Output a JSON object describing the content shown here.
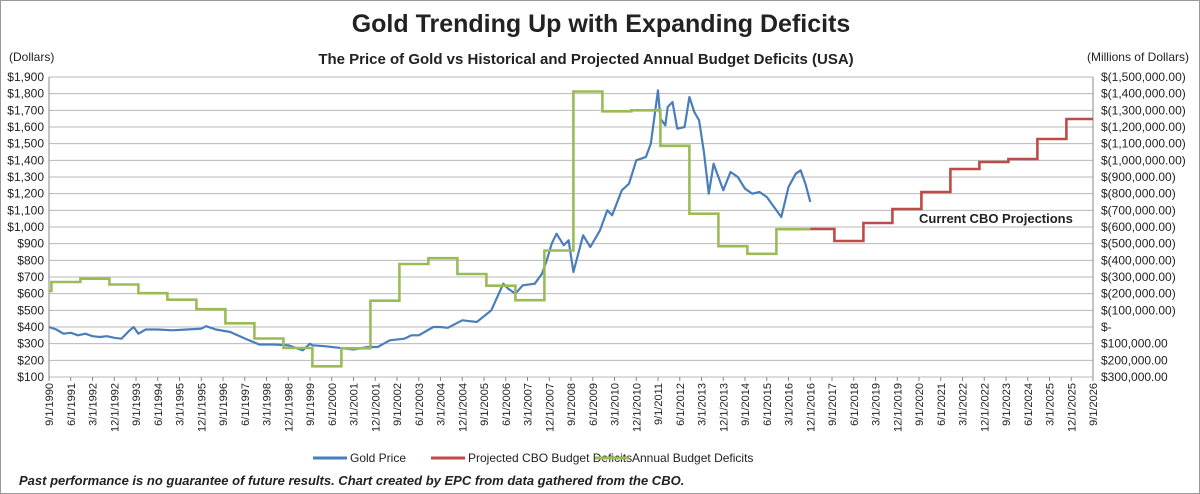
{
  "chart_data": {
    "type": "line",
    "title": "Gold Trending Up with Expanding Deficits",
    "subtitle": "The Price of Gold vs Historical and Projected Annual Budget Deficits (USA)",
    "ylabel_left": "(Dollars)",
    "ylabel_right": "(Millions of Dollars)",
    "ylim_left": [
      100,
      1900
    ],
    "ylim_right_deficit": [
      -300000,
      1500000
    ],
    "right_axis_inverted_note": "deficits shown as negative values in parentheses",
    "grid": true,
    "legend_position": "bottom",
    "y_ticks_left": [
      "$1,900",
      "$1,800",
      "$1,700",
      "$1,600",
      "$1,500",
      "$1,400",
      "$1,300",
      "$1,200",
      "$1,100",
      "$1,000",
      "$900",
      "$800",
      "$700",
      "$600",
      "$500",
      "$400",
      "$300",
      "$200",
      "$100"
    ],
    "y_ticks_right": [
      "$(1,500,000.00)",
      "$(1,400,000.00)",
      "$(1,300,000.00)",
      "$(1,200,000.00)",
      "$(1,100,000.00)",
      "$(1,000,000.00)",
      "$(900,000.00)",
      "$(800,000.00)",
      "$(700,000.00)",
      "$(600,000.00)",
      "$(500,000.00)",
      "$(400,000.00)",
      "$(300,000.00)",
      "$(200,000.00)",
      "$(100,000.00)",
      "$-",
      "$100,000.00",
      "$200,000.00",
      "$300,000.00"
    ],
    "x_ticks": [
      "9/1/1990",
      "6/1/1991",
      "3/1/1992",
      "12/1/1992",
      "9/1/1993",
      "6/1/1994",
      "3/1/1995",
      "12/1/1995",
      "9/1/1996",
      "6/1/1997",
      "3/1/1998",
      "12/1/1998",
      "9/1/1999",
      "6/1/2000",
      "3/1/2001",
      "12/1/2001",
      "9/1/2002",
      "6/1/2003",
      "3/1/2004",
      "12/1/2004",
      "9/1/2005",
      "6/1/2006",
      "3/1/2007",
      "12/1/2007",
      "9/1/2008",
      "6/1/2009",
      "3/1/2010",
      "12/1/2010",
      "9/1/2011",
      "6/1/2012",
      "3/1/2013",
      "12/1/2013",
      "9/1/2014",
      "6/1/2015",
      "3/1/2016",
      "12/1/2016",
      "9/1/2017",
      "6/1/2018",
      "3/1/2019",
      "12/1/2019",
      "9/1/2020",
      "6/1/2021",
      "3/1/2022",
      "12/1/2022",
      "9/1/2023",
      "6/1/2024",
      "3/1/2025",
      "12/1/2025",
      "9/1/2026"
    ],
    "series": [
      {
        "name": "Gold Price",
        "axis": "left",
        "color": "#4a7ebb",
        "points": [
          [
            "1990-09",
            400
          ],
          [
            "1990-12",
            385
          ],
          [
            "1991-03",
            360
          ],
          [
            "1991-06",
            365
          ],
          [
            "1991-09",
            350
          ],
          [
            "1991-12",
            360
          ],
          [
            "1992-03",
            345
          ],
          [
            "1992-06",
            340
          ],
          [
            "1992-09",
            345
          ],
          [
            "1992-12",
            335
          ],
          [
            "1993-03",
            330
          ],
          [
            "1993-06",
            375
          ],
          [
            "1993-08",
            400
          ],
          [
            "1993-10",
            360
          ],
          [
            "1994-01",
            385
          ],
          [
            "1994-06",
            385
          ],
          [
            "1994-12",
            380
          ],
          [
            "1995-06",
            385
          ],
          [
            "1995-12",
            390
          ],
          [
            "1996-02",
            405
          ],
          [
            "1996-06",
            385
          ],
          [
            "1996-12",
            370
          ],
          [
            "1997-03",
            350
          ],
          [
            "1997-07",
            325
          ],
          [
            "1997-12",
            295
          ],
          [
            "1998-06",
            295
          ],
          [
            "1998-12",
            290
          ],
          [
            "1999-06",
            260
          ],
          [
            "1999-09",
            300
          ],
          [
            "1999-10",
            290
          ],
          [
            "2000-03",
            285
          ],
          [
            "2000-09",
            275
          ],
          [
            "2001-03",
            265
          ],
          [
            "2001-09",
            280
          ],
          [
            "2002-01",
            280
          ],
          [
            "2002-06",
            320
          ],
          [
            "2002-12",
            330
          ],
          [
            "2003-03",
            350
          ],
          [
            "2003-06",
            350
          ],
          [
            "2003-12",
            400
          ],
          [
            "2004-03",
            400
          ],
          [
            "2004-06",
            395
          ],
          [
            "2004-12",
            440
          ],
          [
            "2005-06",
            430
          ],
          [
            "2005-12",
            500
          ],
          [
            "2006-05",
            660
          ],
          [
            "2006-07",
            630
          ],
          [
            "2006-10",
            600
          ],
          [
            "2007-01",
            650
          ],
          [
            "2007-06",
            660
          ],
          [
            "2007-09",
            720
          ],
          [
            "2007-11",
            800
          ],
          [
            "2008-01",
            900
          ],
          [
            "2008-03",
            960
          ],
          [
            "2008-06",
            890
          ],
          [
            "2008-08",
            920
          ],
          [
            "2008-10",
            730
          ],
          [
            "2009-02",
            950
          ],
          [
            "2009-05",
            880
          ],
          [
            "2009-09",
            980
          ],
          [
            "2009-12",
            1100
          ],
          [
            "2010-02",
            1070
          ],
          [
            "2010-06",
            1220
          ],
          [
            "2010-09",
            1260
          ],
          [
            "2010-12",
            1400
          ],
          [
            "2011-04",
            1420
          ],
          [
            "2011-06",
            1500
          ],
          [
            "2011-09",
            1820
          ],
          [
            "2011-10",
            1650
          ],
          [
            "2011-12",
            1610
          ],
          [
            "2012-01",
            1720
          ],
          [
            "2012-03",
            1750
          ],
          [
            "2012-05",
            1590
          ],
          [
            "2012-08",
            1600
          ],
          [
            "2012-10",
            1780
          ],
          [
            "2012-12",
            1690
          ],
          [
            "2013-02",
            1640
          ],
          [
            "2013-04",
            1450
          ],
          [
            "2013-06",
            1200
          ],
          [
            "2013-08",
            1380
          ],
          [
            "2013-12",
            1220
          ],
          [
            "2014-03",
            1330
          ],
          [
            "2014-06",
            1300
          ],
          [
            "2014-09",
            1230
          ],
          [
            "2014-12",
            1200
          ],
          [
            "2015-03",
            1210
          ],
          [
            "2015-06",
            1180
          ],
          [
            "2015-09",
            1120
          ],
          [
            "2015-12",
            1060
          ],
          [
            "2016-03",
            1240
          ],
          [
            "2016-06",
            1320
          ],
          [
            "2016-08",
            1340
          ],
          [
            "2016-10",
            1260
          ],
          [
            "2016-12",
            1150
          ]
        ]
      },
      {
        "name": "Projected CBO Budget Deficits",
        "axis": "right",
        "color": "#be4b48",
        "end": "2026-09",
        "steps": [
          [
            "2016-12",
            588000
          ],
          [
            "2017-10",
            516000
          ],
          [
            "2018-10",
            624000
          ],
          [
            "2019-10",
            708000
          ],
          [
            "2020-10",
            810000
          ],
          [
            "2021-10",
            948000
          ],
          [
            "2022-10",
            990000
          ],
          [
            "2023-10",
            1008000
          ],
          [
            "2024-10",
            1128000
          ],
          [
            "2025-10",
            1248000
          ]
        ]
      },
      {
        "name": "Annual Budget Deficits",
        "axis": "right",
        "color": "#9bbb59",
        "end": "2016-12",
        "steps": [
          [
            "1990-09",
            216000
          ],
          [
            "1990-10",
            270000
          ],
          [
            "1991-10",
            290000
          ],
          [
            "1992-10",
            255000
          ],
          [
            "1993-10",
            203000
          ],
          [
            "1994-10",
            164000
          ],
          [
            "1995-10",
            107000
          ],
          [
            "1996-10",
            22000
          ],
          [
            "1997-10",
            -69000
          ],
          [
            "1998-10",
            -126000
          ],
          [
            "1999-10",
            -236000
          ],
          [
            "2000-10",
            -128000
          ],
          [
            "2001-10",
            158000
          ],
          [
            "2002-10",
            378000
          ],
          [
            "2003-10",
            413000
          ],
          [
            "2004-10",
            318000
          ],
          [
            "2005-10",
            248000
          ],
          [
            "2006-10",
            161000
          ],
          [
            "2007-10",
            459000
          ],
          [
            "2008-10",
            1413000
          ],
          [
            "2009-10",
            1294000
          ],
          [
            "2010-10",
            1300000
          ],
          [
            "2011-10",
            1087000
          ],
          [
            "2012-10",
            680000
          ],
          [
            "2013-10",
            485000
          ],
          [
            "2014-10",
            439000
          ],
          [
            "2015-10",
            587000
          ]
        ]
      }
    ],
    "annotation": {
      "text": "Current CBO Projections",
      "color": "#d0262b"
    }
  },
  "footer": "Past performance  is no guarantee of future results.  Chart created by EPC from data gathered from the CBO."
}
